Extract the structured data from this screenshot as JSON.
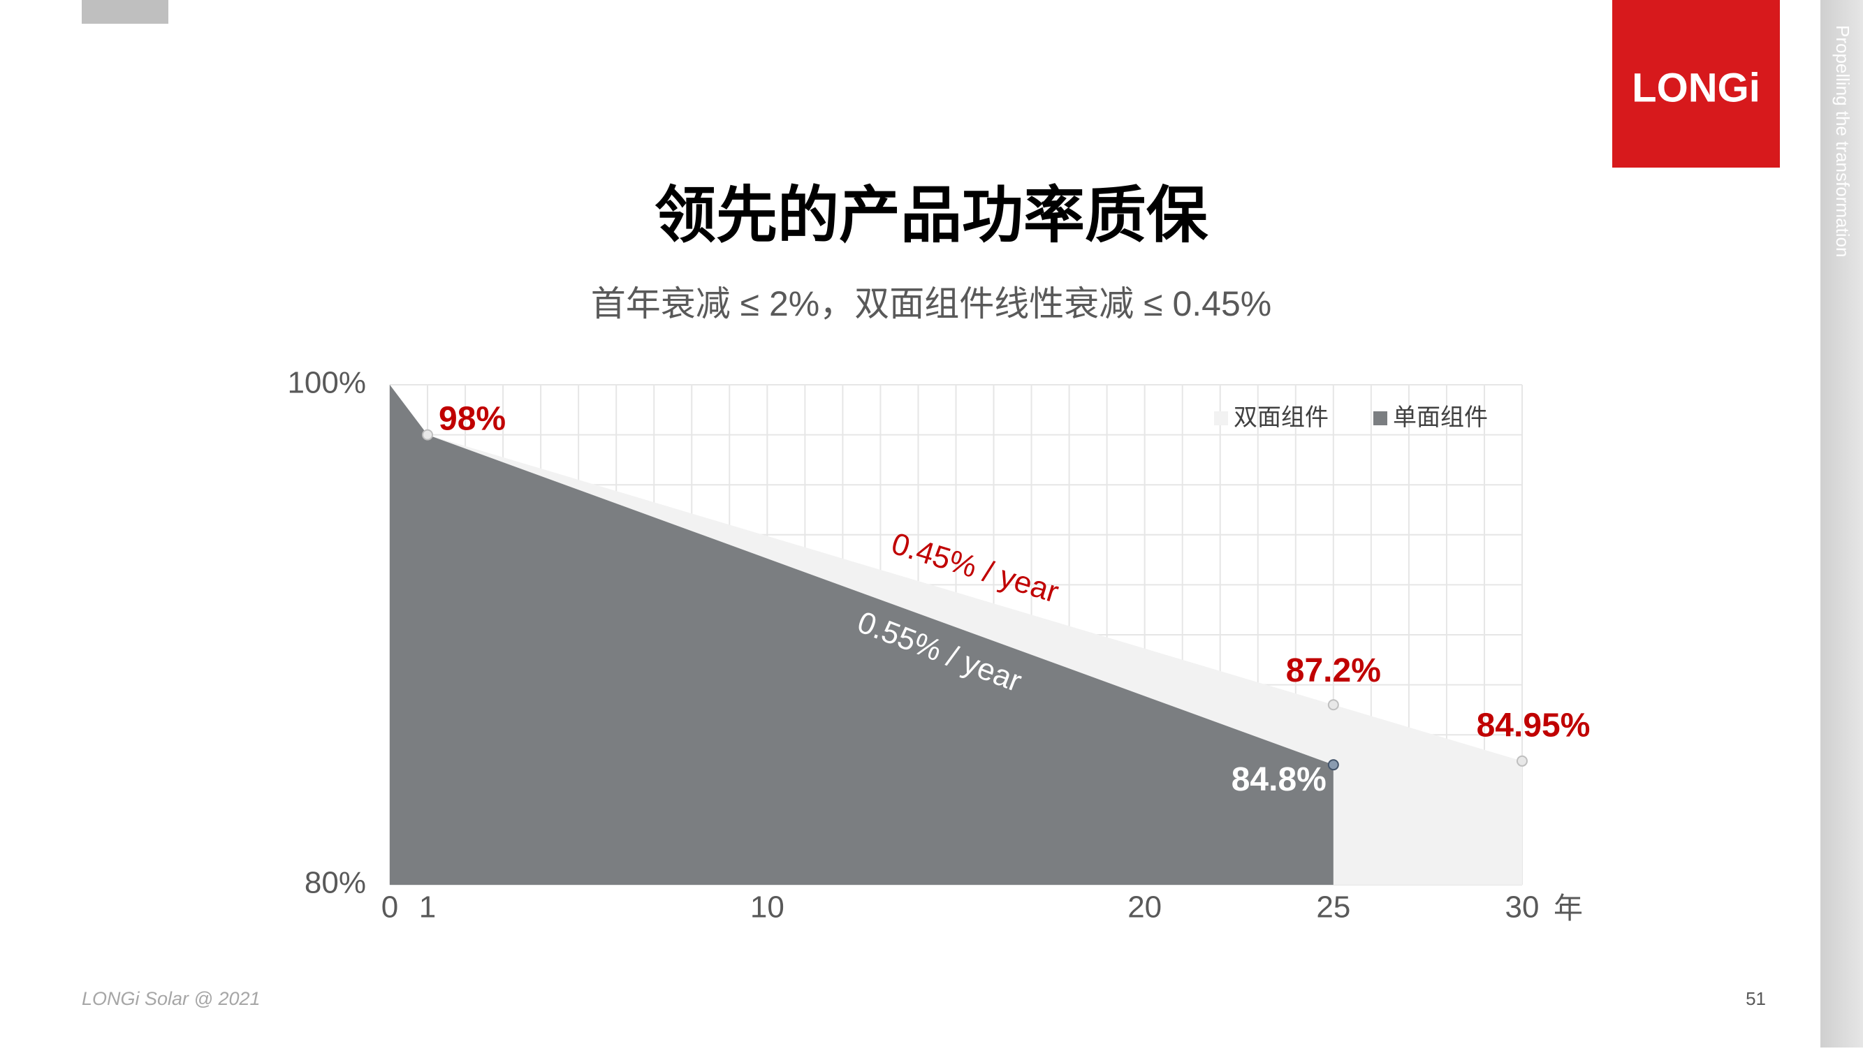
{
  "header": {
    "logo": "LONGi",
    "tagline": "Propelling the transformation"
  },
  "footer": {
    "copyright": "LONGi Solar @ 2021",
    "page_number": "51"
  },
  "chart_data": {
    "type": "area",
    "title": "领先的产品功率质保",
    "subtitle": "首年衰减 ≤ 2%，双面组件线性衰减 ≤ 0.45%",
    "x_unit": "年",
    "xlim": [
      0,
      30
    ],
    "ylim": [
      80,
      100
    ],
    "xticks": [
      0,
      1,
      10,
      20,
      25,
      30
    ],
    "yticks": [
      {
        "value": 80,
        "label": "80%"
      },
      {
        "value": 100,
        "label": "100%"
      }
    ],
    "grid": true,
    "legend": "upper right",
    "series": [
      {
        "name": "双面组件",
        "color": "#f2f2f2",
        "label_color": "#c00000",
        "x": [
          0,
          1,
          25,
          30
        ],
        "values": [
          100,
          98,
          87.2,
          84.95
        ],
        "value_labels": [
          null,
          "98%",
          "87.2%",
          "84.95%"
        ]
      },
      {
        "name": "单面组件",
        "color": "#7b7e81",
        "label_color": "#ffffff",
        "x": [
          0,
          1,
          25
        ],
        "values": [
          100,
          98,
          84.8
        ],
        "value_labels": [
          null,
          null,
          "84.8%"
        ]
      }
    ],
    "annotations": [
      {
        "text": "0.45% / year",
        "color": "#c00000"
      },
      {
        "text": "0.55% / year",
        "color": "#ffffff"
      }
    ]
  }
}
